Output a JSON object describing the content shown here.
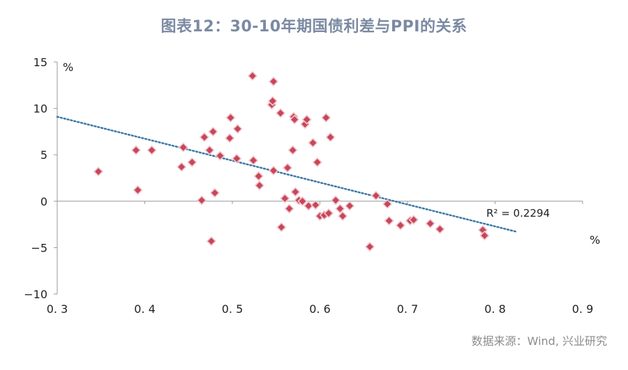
{
  "title": "图表12：30-10年期国债利差与PPI的关系",
  "source": "数据来源：Wind, 兴业研究",
  "colors": {
    "marker_fill": "#c8465a",
    "marker_stroke": "#f2c9cf",
    "trend": "#3a78a8",
    "axis": "#999999",
    "title": "#7b8aa2"
  },
  "chart_data": {
    "type": "scatter",
    "title": "图表12：30-10年期国债利差与PPI的关系",
    "x_unit": "%",
    "y_unit": "%",
    "xlim": [
      0.3,
      0.9
    ],
    "ylim": [
      -10,
      15
    ],
    "x_ticks": [
      "0. 3",
      "0. 4",
      "0. 5",
      "0. 6",
      "0. 7",
      "0. 8",
      "0. 9"
    ],
    "y_ticks": [
      "15",
      "10",
      "5",
      "0",
      "−5",
      "−10"
    ],
    "grid": false,
    "r2_label": "R² = 0.2294",
    "trendline": {
      "x": [
        0.3,
        0.825
      ],
      "y": [
        9.1,
        -3.3
      ]
    },
    "points": [
      {
        "x": 0.347,
        "y": 3.2
      },
      {
        "x": 0.39,
        "y": 5.5
      },
      {
        "x": 0.392,
        "y": 1.2
      },
      {
        "x": 0.408,
        "y": 5.5
      },
      {
        "x": 0.442,
        "y": 3.7
      },
      {
        "x": 0.444,
        "y": 5.8
      },
      {
        "x": 0.454,
        "y": 4.2
      },
      {
        "x": 0.465,
        "y": 0.1
      },
      {
        "x": 0.468,
        "y": 6.9
      },
      {
        "x": 0.474,
        "y": 5.5
      },
      {
        "x": 0.476,
        "y": -4.3
      },
      {
        "x": 0.478,
        "y": 7.5
      },
      {
        "x": 0.48,
        "y": 0.9
      },
      {
        "x": 0.486,
        "y": 4.9
      },
      {
        "x": 0.497,
        "y": 6.8
      },
      {
        "x": 0.498,
        "y": 9.0
      },
      {
        "x": 0.505,
        "y": 4.6
      },
      {
        "x": 0.506,
        "y": 7.8
      },
      {
        "x": 0.523,
        "y": 13.5
      },
      {
        "x": 0.524,
        "y": 4.4
      },
      {
        "x": 0.53,
        "y": 2.7
      },
      {
        "x": 0.531,
        "y": 1.7
      },
      {
        "x": 0.545,
        "y": 10.4
      },
      {
        "x": 0.546,
        "y": 10.8
      },
      {
        "x": 0.547,
        "y": 12.9
      },
      {
        "x": 0.547,
        "y": 3.3
      },
      {
        "x": 0.555,
        "y": 9.5
      },
      {
        "x": 0.556,
        "y": -2.8
      },
      {
        "x": 0.56,
        "y": 0.3
      },
      {
        "x": 0.563,
        "y": 3.6
      },
      {
        "x": 0.565,
        "y": -0.8
      },
      {
        "x": 0.569,
        "y": 5.5
      },
      {
        "x": 0.57,
        "y": 9.1
      },
      {
        "x": 0.571,
        "y": 8.8
      },
      {
        "x": 0.572,
        "y": 1.0
      },
      {
        "x": 0.576,
        "y": 0.1
      },
      {
        "x": 0.58,
        "y": 0.0
      },
      {
        "x": 0.583,
        "y": 8.3
      },
      {
        "x": 0.585,
        "y": 8.8
      },
      {
        "x": 0.587,
        "y": -0.5
      },
      {
        "x": 0.592,
        "y": 6.3
      },
      {
        "x": 0.595,
        "y": -0.4
      },
      {
        "x": 0.597,
        "y": 4.2
      },
      {
        "x": 0.6,
        "y": -1.6
      },
      {
        "x": 0.605,
        "y": -1.5
      },
      {
        "x": 0.607,
        "y": 9.0
      },
      {
        "x": 0.61,
        "y": -1.3
      },
      {
        "x": 0.612,
        "y": 6.9
      },
      {
        "x": 0.618,
        "y": 0.1
      },
      {
        "x": 0.623,
        "y": -0.8
      },
      {
        "x": 0.626,
        "y": -1.6
      },
      {
        "x": 0.634,
        "y": -0.5
      },
      {
        "x": 0.657,
        "y": -4.9
      },
      {
        "x": 0.664,
        "y": 0.6
      },
      {
        "x": 0.677,
        "y": -0.3
      },
      {
        "x": 0.679,
        "y": -2.1
      },
      {
        "x": 0.692,
        "y": -2.6
      },
      {
        "x": 0.703,
        "y": -2.1
      },
      {
        "x": 0.707,
        "y": -2.0
      },
      {
        "x": 0.726,
        "y": -2.4
      },
      {
        "x": 0.737,
        "y": -3.0
      },
      {
        "x": 0.786,
        "y": -3.1
      },
      {
        "x": 0.788,
        "y": -3.7
      }
    ]
  }
}
